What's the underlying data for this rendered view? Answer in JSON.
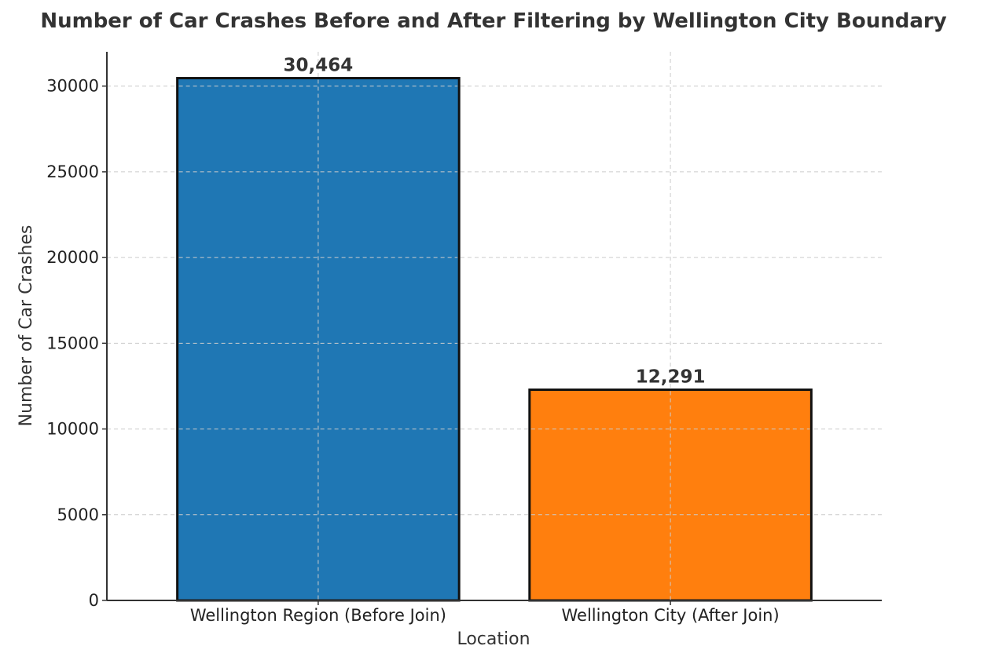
{
  "chart_data": {
    "type": "bar",
    "title": "Number of Car Crashes Before and After Filtering by Wellington City Boundary",
    "xlabel": "Location",
    "ylabel": "Number of Car Crashes",
    "categories": [
      "Wellington Region (Before Join)",
      "Wellington City (After Join)"
    ],
    "values": [
      30464,
      12291
    ],
    "data_labels": [
      "30,464",
      "12,291"
    ],
    "colors": [
      "#1f77b4",
      "#ff7f0e"
    ],
    "ylim": [
      0,
      32000
    ],
    "yticks": [
      0,
      5000,
      10000,
      15000,
      20000,
      25000,
      30000
    ],
    "ytick_labels": [
      "0",
      "5000",
      "10000",
      "15000",
      "20000",
      "25000",
      "30000"
    ],
    "grid": true,
    "legend": "none"
  }
}
